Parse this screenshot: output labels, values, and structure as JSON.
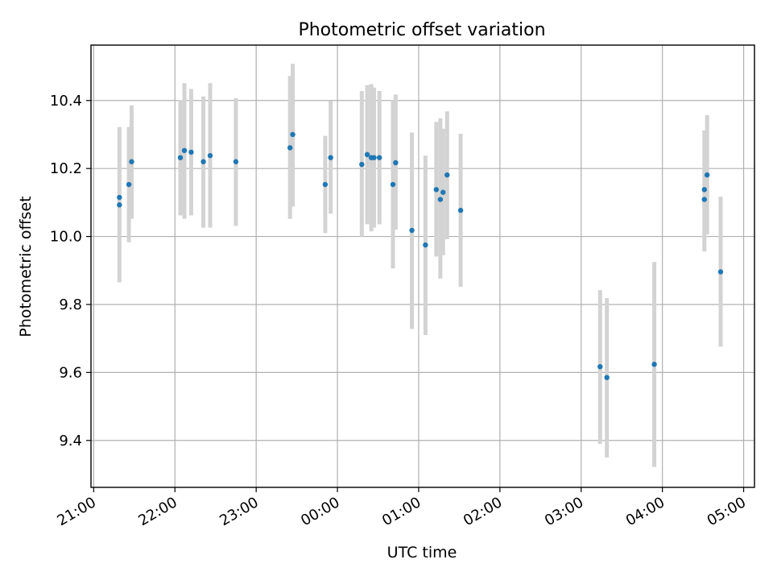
{
  "chart_data": {
    "type": "scatter",
    "title": "Photometric offset variation",
    "xlabel": "UTC time",
    "ylabel": "Photometric offset",
    "x_ticks": [
      "21:00",
      "22:00",
      "23:00",
      "00:00",
      "01:00",
      "02:00",
      "03:00",
      "04:00",
      "05:00"
    ],
    "y_ticks": [
      "9.4",
      "9.6",
      "9.8",
      "10.0",
      "10.2",
      "10.4"
    ],
    "xlim": [
      "20:58",
      "05:08"
    ],
    "ylim": [
      9.262,
      10.563
    ],
    "grid": true,
    "colors": {
      "point": "#1f77b4",
      "errorbar": "#d3d3d3",
      "grid": "#b0b0b0"
    },
    "points": [
      {
        "t": "21:19",
        "y": 10.115,
        "lo": 10.115,
        "hi": 10.115
      },
      {
        "t": "21:19",
        "y": 10.093,
        "lo": 9.865,
        "hi": 10.322
      },
      {
        "t": "21:26",
        "y": 10.153,
        "lo": 9.983,
        "hi": 10.322
      },
      {
        "t": "21:28",
        "y": 10.22,
        "lo": 10.052,
        "hi": 10.386
      },
      {
        "t": "22:04",
        "y": 10.232,
        "lo": 10.062,
        "hi": 10.402
      },
      {
        "t": "22:07",
        "y": 10.253,
        "lo": 10.052,
        "hi": 10.451
      },
      {
        "t": "22:12",
        "y": 10.248,
        "lo": 10.062,
        "hi": 10.434
      },
      {
        "t": "22:21",
        "y": 10.22,
        "lo": 10.026,
        "hi": 10.412
      },
      {
        "t": "22:26",
        "y": 10.238,
        "lo": 10.026,
        "hi": 10.451
      },
      {
        "t": "22:45",
        "y": 10.22,
        "lo": 10.031,
        "hi": 10.407
      },
      {
        "t": "23:25",
        "y": 10.261,
        "lo": 10.052,
        "hi": 10.472
      },
      {
        "t": "23:27",
        "y": 10.3,
        "lo": 10.088,
        "hi": 10.508
      },
      {
        "t": "23:51",
        "y": 10.153,
        "lo": 10.01,
        "hi": 10.296
      },
      {
        "t": "23:55",
        "y": 10.232,
        "lo": 10.067,
        "hi": 10.399
      },
      {
        "t": "00:18",
        "y": 10.212,
        "lo": 10.0,
        "hi": 10.428
      },
      {
        "t": "00:22",
        "y": 10.241,
        "lo": 10.036,
        "hi": 10.445
      },
      {
        "t": "00:25",
        "y": 10.232,
        "lo": 10.015,
        "hi": 10.448
      },
      {
        "t": "00:27",
        "y": 10.232,
        "lo": 10.026,
        "hi": 10.438
      },
      {
        "t": "00:31",
        "y": 10.232,
        "lo": 10.036,
        "hi": 10.428
      },
      {
        "t": "00:41",
        "y": 10.153,
        "lo": 9.906,
        "hi": 10.402
      },
      {
        "t": "00:43",
        "y": 10.217,
        "lo": 10.02,
        "hi": 10.418
      },
      {
        "t": "00:55",
        "y": 10.018,
        "lo": 9.728,
        "hi": 10.306
      },
      {
        "t": "01:05",
        "y": 9.975,
        "lo": 9.71,
        "hi": 10.238
      },
      {
        "t": "01:13",
        "y": 10.138,
        "lo": 9.941,
        "hi": 10.337
      },
      {
        "t": "01:16",
        "y": 10.109,
        "lo": 9.876,
        "hi": 10.348
      },
      {
        "t": "01:18",
        "y": 10.13,
        "lo": 9.945,
        "hi": 10.317
      },
      {
        "t": "01:21",
        "y": 10.181,
        "lo": 9.992,
        "hi": 10.368
      },
      {
        "t": "01:31",
        "y": 10.077,
        "lo": 9.852,
        "hi": 10.302
      },
      {
        "t": "03:14",
        "y": 9.617,
        "lo": 9.39,
        "hi": 9.842
      },
      {
        "t": "03:19",
        "y": 9.585,
        "lo": 9.35,
        "hi": 9.819
      },
      {
        "t": "03:54",
        "y": 9.624,
        "lo": 9.322,
        "hi": 9.925
      },
      {
        "t": "04:31",
        "y": 10.109,
        "lo": 9.956,
        "hi": 10.312
      },
      {
        "t": "04:31",
        "y": 10.138,
        "lo": 10.138,
        "hi": 10.138
      },
      {
        "t": "04:33",
        "y": 10.181,
        "lo": 10.006,
        "hi": 10.357
      },
      {
        "t": "04:43",
        "y": 9.896,
        "lo": 9.676,
        "hi": 10.117
      }
    ]
  }
}
